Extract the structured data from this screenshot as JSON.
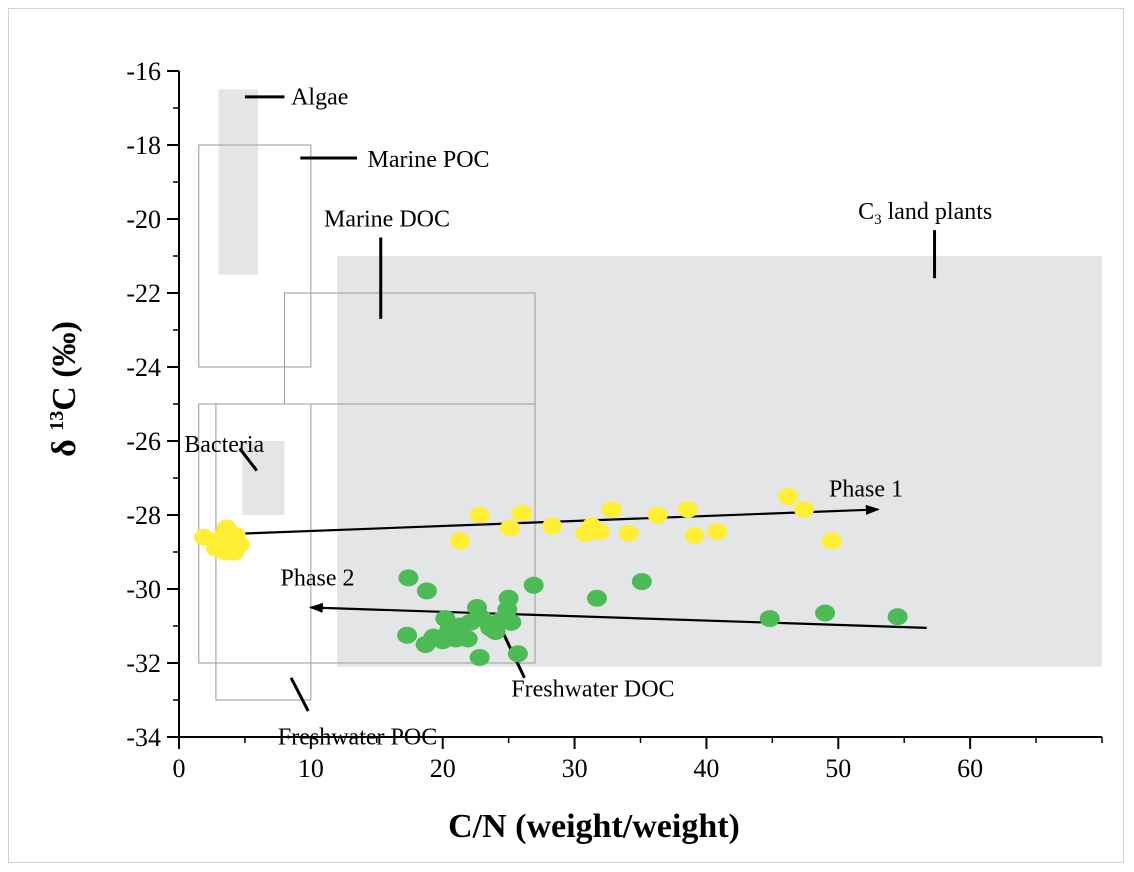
{
  "chart_data": {
    "type": "scatter",
    "xlabel": "C/N (weight/weight)",
    "ylabel": {
      "prefix": "δ ",
      "sup": "13",
      "suffix": "C (‰)"
    },
    "xlim": [
      0,
      70
    ],
    "ylim": [
      -34,
      -16
    ],
    "x_ticks": [
      0,
      10,
      20,
      30,
      40,
      50,
      60
    ],
    "y_ticks": [
      -34,
      -32,
      -30,
      -28,
      -26,
      -24,
      -22,
      -20,
      -18,
      -16
    ],
    "grid": false,
    "legend": "none",
    "colors": {
      "phase1": "#ffee33",
      "phase2": "#4dbb55",
      "shaded_region": "#e4e5e7",
      "box_outline": "#9a9a9a"
    },
    "regions": [
      {
        "name": "Algae",
        "style": "filled",
        "x": [
          3,
          6
        ],
        "y": [
          -21.5,
          -16.5
        ]
      },
      {
        "name": "Marine POC",
        "style": "outline",
        "x": [
          1.5,
          10
        ],
        "y": [
          -24,
          -18
        ]
      },
      {
        "name": "Marine DOC",
        "style": "outline",
        "x": [
          8,
          27
        ],
        "y": [
          -25,
          -22
        ]
      },
      {
        "name": "C3 land plants",
        "style": "filled",
        "x": [
          12,
          70
        ],
        "y": [
          -32.1,
          -21
        ]
      },
      {
        "name": "Bacteria",
        "style": "filled",
        "x": [
          4.8,
          8
        ],
        "y": [
          -28,
          -26
        ]
      },
      {
        "name": "Freshwater DOC",
        "style": "outline",
        "x": [
          1.5,
          27
        ],
        "y": [
          -32,
          -25
        ]
      },
      {
        "name": "Freshwater POC",
        "style": "outline",
        "x": [
          2.8,
          10
        ],
        "y": [
          -33,
          -25
        ]
      }
    ],
    "labels": [
      {
        "key": "algae",
        "text": "Algae",
        "x": 8.5,
        "y": -16.9,
        "line": [
          [
            5,
            -16.7
          ],
          [
            8,
            -16.7
          ]
        ]
      },
      {
        "key": "marine_poc",
        "text": "Marine POC",
        "x": 14.3,
        "y": -18.6,
        "line": [
          [
            9.2,
            -18.35
          ],
          [
            13.5,
            -18.35
          ]
        ]
      },
      {
        "key": "marine_doc",
        "text": "Marine DOC",
        "x": 11,
        "y": -20.2,
        "line": [
          [
            15.3,
            -20.5
          ],
          [
            15.3,
            -22.7
          ]
        ]
      },
      {
        "key": "c3_land_plants",
        "text": "land plants",
        "sub_prefix": "C",
        "sub": "3",
        "x": 51.5,
        "y": -20,
        "line": [
          [
            57.3,
            -20.3
          ],
          [
            57.3,
            -21.6
          ]
        ]
      },
      {
        "key": "bacteria",
        "text": "Bacteria",
        "x": 0.4,
        "y": -26.3,
        "line": [
          [
            4.6,
            -26.2
          ],
          [
            5.9,
            -26.8
          ]
        ]
      },
      {
        "key": "freshwater_doc",
        "text": "Freshwater DOC",
        "x": 25.2,
        "y": -32.9,
        "line": [
          [
            24.6,
            -31.2
          ],
          [
            26.2,
            -32.4
          ]
        ]
      },
      {
        "key": "freshwater_poc",
        "text": "Freshwater POC",
        "x": 7.5,
        "y": -34.2,
        "line": [
          [
            8.5,
            -32.4
          ],
          [
            9.8,
            -33.3
          ]
        ]
      },
      {
        "key": "phase1",
        "text": "Phase 1",
        "x": 49.3,
        "y": -27.5
      },
      {
        "key": "phase2",
        "text": "Phase 2",
        "x": 7.7,
        "y": -29.9
      }
    ],
    "arrows": [
      {
        "name": "Phase 1 trend",
        "from": [
          5,
          -28.5
        ],
        "to": [
          53,
          -27.85
        ]
      },
      {
        "name": "Phase 2 trend",
        "from": [
          56.7,
          -31.05
        ],
        "to": [
          10,
          -30.5
        ]
      }
    ],
    "series": [
      {
        "name": "Phase 1",
        "color": "#ffee33",
        "points": [
          [
            1.9,
            -28.6
          ],
          [
            2.8,
            -28.9
          ],
          [
            3.3,
            -28.6
          ],
          [
            3.6,
            -28.35
          ],
          [
            3.8,
            -28.75
          ],
          [
            4.1,
            -28.9
          ],
          [
            4.3,
            -28.55
          ],
          [
            4.6,
            -28.8
          ],
          [
            4.2,
            -29.0
          ],
          [
            3.5,
            -29.0
          ],
          [
            21.3,
            -28.7
          ],
          [
            22.8,
            -28.0
          ],
          [
            25.1,
            -28.35
          ],
          [
            26.0,
            -27.95
          ],
          [
            28.3,
            -28.3
          ],
          [
            30.8,
            -28.5
          ],
          [
            31.3,
            -28.3
          ],
          [
            31.9,
            -28.45
          ],
          [
            32.8,
            -27.85
          ],
          [
            34.1,
            -28.5
          ],
          [
            36.3,
            -28.0
          ],
          [
            38.6,
            -27.85
          ],
          [
            39.1,
            -28.55
          ],
          [
            40.8,
            -28.45
          ],
          [
            46.2,
            -27.5
          ],
          [
            47.4,
            -27.85
          ],
          [
            49.5,
            -28.7
          ]
        ]
      },
      {
        "name": "Phase 2",
        "color": "#4dbb55",
        "points": [
          [
            17.3,
            -31.25
          ],
          [
            17.4,
            -29.7
          ],
          [
            18.7,
            -31.5
          ],
          [
            18.8,
            -30.05
          ],
          [
            19.3,
            -31.3
          ],
          [
            20.0,
            -31.4
          ],
          [
            20.2,
            -30.8
          ],
          [
            20.5,
            -31.1
          ],
          [
            21.0,
            -31.35
          ],
          [
            21.3,
            -31.0
          ],
          [
            21.9,
            -31.35
          ],
          [
            22.1,
            -30.9
          ],
          [
            22.6,
            -30.5
          ],
          [
            22.8,
            -31.85
          ],
          [
            23.0,
            -30.8
          ],
          [
            23.6,
            -31.05
          ],
          [
            24.0,
            -31.15
          ],
          [
            24.4,
            -30.85
          ],
          [
            24.9,
            -30.55
          ],
          [
            25.0,
            -30.25
          ],
          [
            25.2,
            -30.9
          ],
          [
            25.7,
            -31.75
          ],
          [
            26.9,
            -29.9
          ],
          [
            31.7,
            -30.25
          ],
          [
            35.1,
            -29.8
          ],
          [
            44.8,
            -30.8
          ],
          [
            49.0,
            -30.65
          ],
          [
            54.5,
            -30.75
          ]
        ]
      }
    ]
  }
}
